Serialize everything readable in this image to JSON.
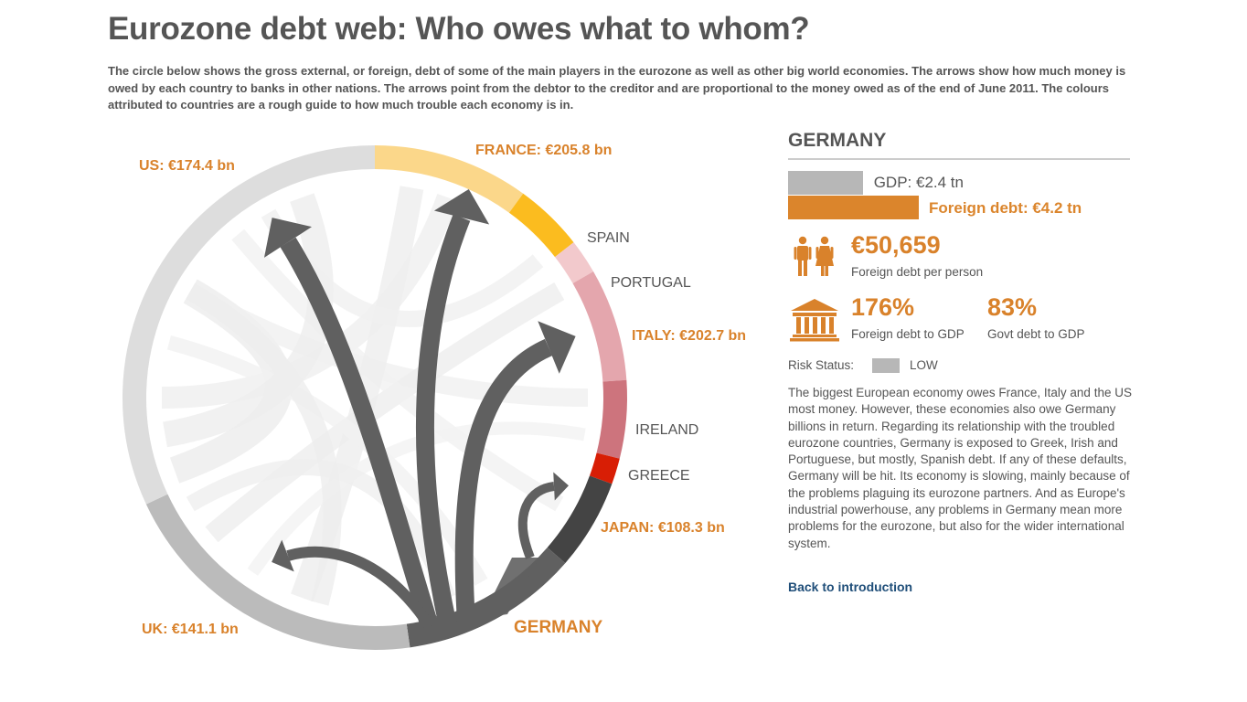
{
  "title": "Eurozone debt web: Who owes what to whom?",
  "intro": "The circle below shows the gross external, or foreign, debt of some of the main players in the eurozone as well as other big world economies. The arrows show how much money is owed by each country to banks in other nations. The arrows point from the debtor to the creditor and are proportional to the money owed as of the end of June 2011. The colours attributed to countries are a rough guide to how much trouble each economy is in.",
  "wheel": {
    "segments": [
      {
        "key": "france",
        "color": "#fbd78a"
      },
      {
        "key": "spain",
        "color": "#fbbc1f"
      },
      {
        "key": "portugal",
        "color": "#f2c9cc"
      },
      {
        "key": "italy",
        "color": "#e4a6ad"
      },
      {
        "key": "ireland",
        "color": "#cd747d"
      },
      {
        "key": "greece",
        "color": "#d81e05"
      },
      {
        "key": "japan",
        "color": "#444444"
      },
      {
        "key": "germany",
        "color": "#606060"
      },
      {
        "key": "uk",
        "color": "#bbbbbb"
      },
      {
        "key": "us",
        "color": "#dddddd"
      }
    ],
    "labels": {
      "us": "US: €174.4 bn",
      "france": "FRANCE: €205.8 bn",
      "spain": "SPAIN",
      "portugal": "PORTUGAL",
      "italy": "ITALY: €202.7 bn",
      "ireland": "IRELAND",
      "greece": "GREECE",
      "japan": "JAPAN: €108.3 bn",
      "uk": "UK: €141.1 bn",
      "germany": "GERMANY"
    },
    "selected": "germany",
    "flow_color": "#606060"
  },
  "panel": {
    "country": "GERMANY",
    "gdp_label": "GDP: €2.4 tn",
    "gdp_value_tn": 2.4,
    "debt_label": "Foreign debt: €4.2 tn",
    "debt_value_tn": 4.2,
    "per_person_value": "€50,659",
    "per_person_label": "Foreign debt per person",
    "debt_gdp_value": "176%",
    "debt_gdp_label": "Foreign debt to GDP",
    "govt_debt_value": "83%",
    "govt_debt_label": "Govt debt to GDP",
    "risk_label": "Risk Status:",
    "risk_value": "LOW",
    "risk_color": "#b7b7b7",
    "description": "The biggest European economy owes France, Italy and the US most money. However, these economies also owe Germany billions in return. Regarding its relationship with the troubled eurozone countries, Germany is exposed to Greek, Irish and Portuguese, but mostly, Spanish debt. If any of these defaults, Germany will be hit. Its economy is slowing, mainly because of the problems plaguing its eurozone partners. And as Europe's industrial powerhouse, any problems in Germany mean more problems for the eurozone, but also for the wider international system.",
    "back_link": "Back to introduction",
    "icons": {
      "people": "people-icon",
      "building": "bank-building-icon"
    },
    "accent_color": "#d9822b"
  }
}
